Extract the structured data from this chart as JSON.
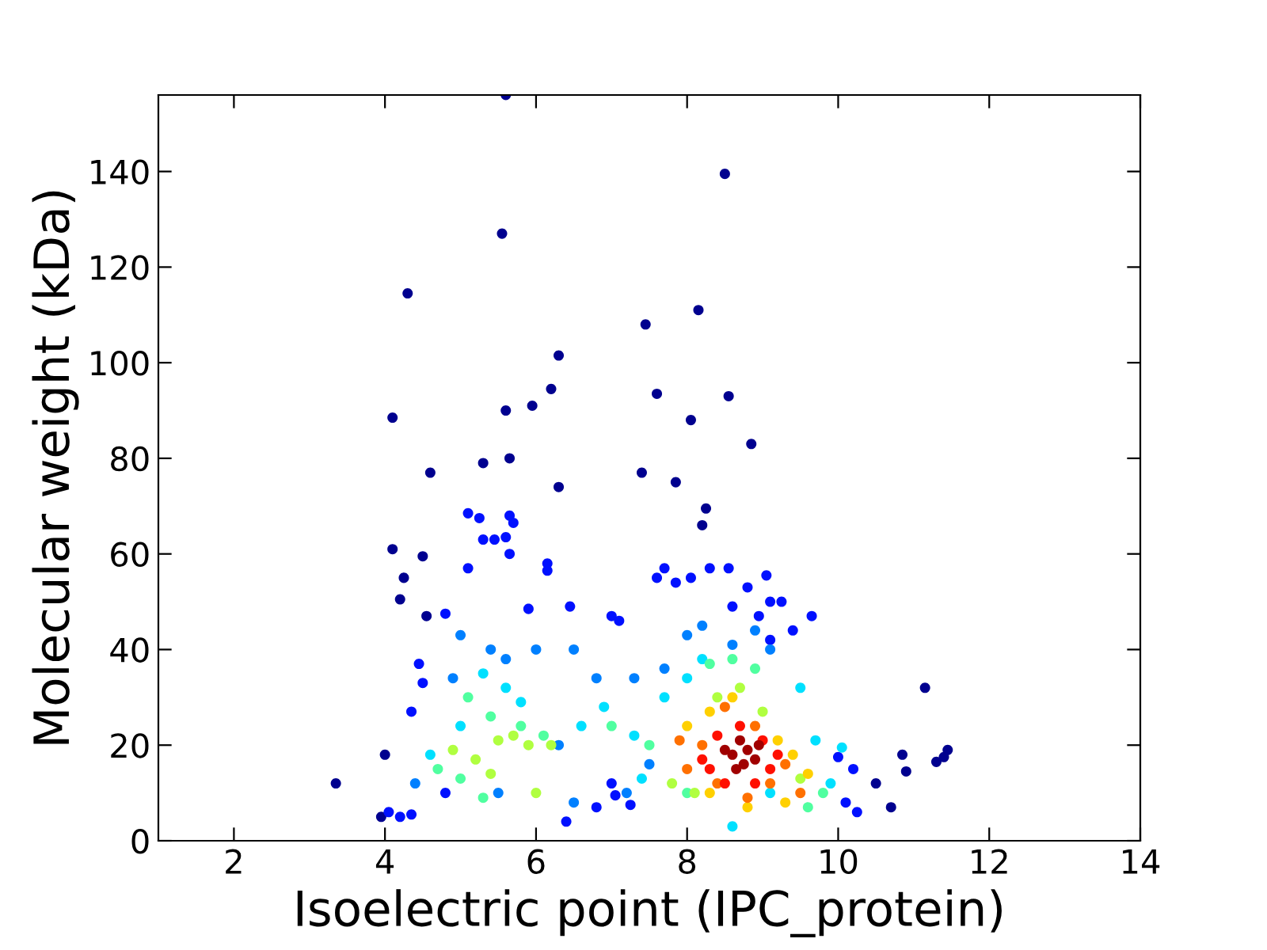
{
  "chart_data": {
    "type": "scatter",
    "xlabel": "Isoelectric point (IPC_protein)",
    "ylabel": "Molecular weight (kDa)",
    "xlim": [
      1,
      14
    ],
    "xticks": [
      2,
      4,
      6,
      8,
      10,
      12,
      14
    ],
    "ylim": [
      0,
      156
    ],
    "yticks": [
      0,
      20,
      40,
      60,
      80,
      100,
      120,
      140
    ],
    "grid": false,
    "legend": false,
    "marker": "circle",
    "series": [
      {
        "color": "#00008f",
        "x": [
          3.35,
          3.95,
          4.0,
          4.1,
          4.1,
          4.2,
          4.25,
          4.3,
          4.5,
          4.55,
          4.6,
          5.6,
          5.55,
          5.6,
          5.95,
          6.2,
          6.3,
          6.3,
          5.3,
          5.65,
          7.45,
          7.6,
          8.05,
          8.15,
          8.5,
          8.55,
          8.85,
          7.4,
          7.85,
          8.25,
          8.2,
          10.5,
          10.7,
          10.85,
          11.15,
          11.3,
          11.4,
          11.45,
          10.9
        ],
        "values": [
          12,
          5,
          18,
          88.5,
          61,
          50.5,
          55,
          114.5,
          59.5,
          47,
          77,
          156,
          127,
          90,
          91,
          94.5,
          101.5,
          74,
          79,
          80,
          108,
          93.5,
          88,
          111,
          139.5,
          93,
          83,
          77,
          75,
          69.5,
          66,
          12,
          7,
          18,
          32,
          16.5,
          17.5,
          19,
          14.5
        ]
      },
      {
        "color": "#0010ff",
        "x": [
          4.35,
          4.45,
          4.5,
          4.8,
          5.1,
          5.25,
          5.3,
          5.45,
          5.6,
          5.65,
          5.7,
          5.1,
          5.65,
          5.9,
          6.15,
          6.15,
          6.45,
          7.0,
          7.1,
          7.6,
          7.7,
          7.85,
          8.05,
          8.3,
          8.55,
          9.05,
          9.1,
          9.25,
          9.65,
          4.05,
          4.2,
          4.35,
          6.4,
          6.8,
          7.0,
          10.25,
          10.1,
          10.2,
          10.0,
          9.4,
          9.1,
          8.6,
          8.8,
          8.95,
          4.8,
          7.05,
          7.25
        ],
        "values": [
          27,
          37,
          33,
          47.5,
          68.5,
          67.5,
          63,
          63,
          63.5,
          68,
          66.5,
          57,
          60,
          48.5,
          56.5,
          58,
          49,
          47,
          46,
          55,
          57,
          54,
          55,
          57,
          57,
          55.5,
          50,
          50,
          47,
          6,
          5,
          5.5,
          4,
          7,
          12,
          6,
          8,
          15,
          17.5,
          44,
          42,
          49,
          53,
          47,
          10,
          9.5,
          7.5
        ]
      },
      {
        "color": "#0080ff",
        "x": [
          5.0,
          5.4,
          5.6,
          6.0,
          6.5,
          6.8,
          7.3,
          7.7,
          8.0,
          8.2,
          8.9,
          8.6,
          9.1,
          4.9,
          6.3,
          7.5,
          7.2,
          6.5,
          5.5,
          4.4
        ],
        "values": [
          43,
          40,
          38,
          40,
          40,
          34,
          34,
          36,
          43,
          45,
          44,
          41,
          40,
          34,
          20,
          16,
          10,
          8,
          10,
          12
        ]
      },
      {
        "color": "#00e0ff",
        "x": [
          5.3,
          5.6,
          5.8,
          6.6,
          6.9,
          7.3,
          7.7,
          8.2,
          9.5,
          9.7,
          10.05,
          9.9,
          5.0,
          4.6,
          8.6,
          9.1,
          8.0,
          7.4
        ],
        "values": [
          35,
          32,
          29,
          24,
          28,
          22,
          30,
          38,
          32,
          21,
          19.5,
          12,
          24,
          18,
          3,
          10,
          34,
          13
        ]
      },
      {
        "color": "#50ffa0",
        "x": [
          5.1,
          5.4,
          5.8,
          6.1,
          7.0,
          7.5,
          8.3,
          8.6,
          8.9,
          4.7,
          5.0,
          5.3,
          9.6,
          9.8,
          8.0
        ],
        "values": [
          30,
          26,
          24,
          22,
          24,
          20,
          37,
          38,
          36,
          15,
          13,
          9,
          7,
          10,
          10
        ]
      },
      {
        "color": "#b0ff40",
        "x": [
          4.9,
          5.2,
          5.5,
          5.7,
          5.9,
          6.2,
          6.0,
          8.1,
          8.4,
          8.7,
          9.0,
          9.5,
          7.8,
          5.4
        ],
        "values": [
          19,
          17,
          21,
          22,
          20,
          20,
          10,
          10,
          30,
          32,
          27,
          13,
          12,
          14
        ]
      },
      {
        "color": "#ffd000",
        "x": [
          8.0,
          8.3,
          8.6,
          9.2,
          9.4,
          8.3,
          8.8,
          9.3,
          9.6
        ],
        "values": [
          24,
          27,
          30,
          21,
          18,
          10,
          7,
          8,
          14
        ]
      },
      {
        "color": "#ff7000",
        "x": [
          7.9,
          8.2,
          8.5,
          8.9,
          9.3,
          8.4,
          8.8,
          9.1,
          8.0,
          9.5
        ],
        "values": [
          21,
          20,
          28,
          24,
          16,
          12,
          9,
          12,
          15,
          10
        ]
      },
      {
        "color": "#ff1000",
        "x": [
          8.2,
          8.4,
          8.7,
          9.0,
          9.2,
          8.5,
          8.9,
          9.1,
          8.3
        ],
        "values": [
          17,
          22,
          24,
          21,
          18,
          12,
          12,
          15,
          15
        ]
      },
      {
        "color": "#a00000",
        "x": [
          8.6,
          8.75,
          8.8,
          8.9,
          8.65,
          8.95,
          8.5,
          8.7
        ],
        "values": [
          18,
          16,
          19,
          17,
          15,
          20,
          19,
          21
        ]
      }
    ]
  }
}
